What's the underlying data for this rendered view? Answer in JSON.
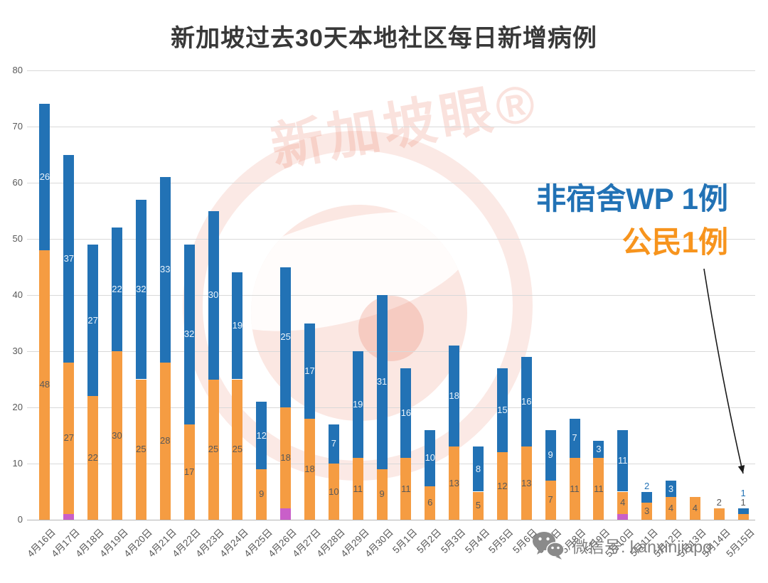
{
  "chart_data": {
    "type": "bar",
    "stacked": true,
    "title": "新加坡过去30天本地社区每日新增病例",
    "xlabel": "",
    "ylabel": "",
    "ylim": [
      0,
      80
    ],
    "yticks": [
      0,
      10,
      20,
      30,
      40,
      50,
      60,
      70,
      80
    ],
    "grid": true,
    "legend": "none",
    "categories": [
      "4月16日",
      "4月17日",
      "4月18日",
      "4月19日",
      "4月20日",
      "4月21日",
      "4月22日",
      "4月23日",
      "4月24日",
      "4月25日",
      "4月26日",
      "4月27日",
      "4月28日",
      "4月29日",
      "4月30日",
      "5月1日",
      "5月2日",
      "5月3日",
      "5月4日",
      "5月5日",
      "5月6日",
      "5月7日",
      "5月8日",
      "5月9日",
      "5月10日",
      "5月11日",
      "5月12日",
      "5月13日",
      "5月14日",
      "5月15日"
    ],
    "series": [
      {
        "key": "purple",
        "name": "",
        "color": "#C95FC9",
        "show_labels": false,
        "values": [
          0,
          1,
          0,
          0,
          0,
          0,
          0,
          0,
          0,
          0,
          2,
          0,
          0,
          0,
          0,
          0,
          0,
          0,
          0,
          0,
          0,
          0,
          0,
          0,
          1,
          0,
          0,
          0,
          0,
          0
        ]
      },
      {
        "key": "citizen",
        "name": "公民",
        "color": "#F59C42",
        "inside_label_color": "#595959",
        "outside_label_color": "#595959",
        "values": [
          48,
          27,
          22,
          30,
          25,
          28,
          17,
          25,
          25,
          9,
          18,
          18,
          10,
          11,
          9,
          11,
          6,
          13,
          5,
          12,
          13,
          7,
          11,
          11,
          4,
          3,
          4,
          4,
          2,
          1
        ]
      },
      {
        "key": "non-dorm-wp",
        "name": "非宿舍WP",
        "color": "#2272B5",
        "inside_label_color": "#EAF3FB",
        "outside_label_color": "#2272B5",
        "values": [
          26,
          37,
          27,
          22,
          32,
          33,
          32,
          30,
          19,
          12,
          25,
          17,
          7,
          19,
          31,
          16,
          10,
          18,
          8,
          15,
          16,
          9,
          7,
          3,
          11,
          2,
          3,
          0,
          0,
          1
        ]
      }
    ],
    "annotation": {
      "line1": "非宿舍WP 1例",
      "line1_color": "#2272B5",
      "line2": "公民1例",
      "line2_color": "#F7941D"
    }
  },
  "watermark": {
    "text": "新加坡眼®"
  },
  "footer": {
    "label": "微信号: kanxinjiapo"
  },
  "colors": {
    "grid": "#D9D9D9",
    "axis": "#B5B5B5",
    "tick_text": "#595959",
    "title_text": "#383838",
    "watermark_pink": "#E87860",
    "footer_gray": "#818181"
  }
}
